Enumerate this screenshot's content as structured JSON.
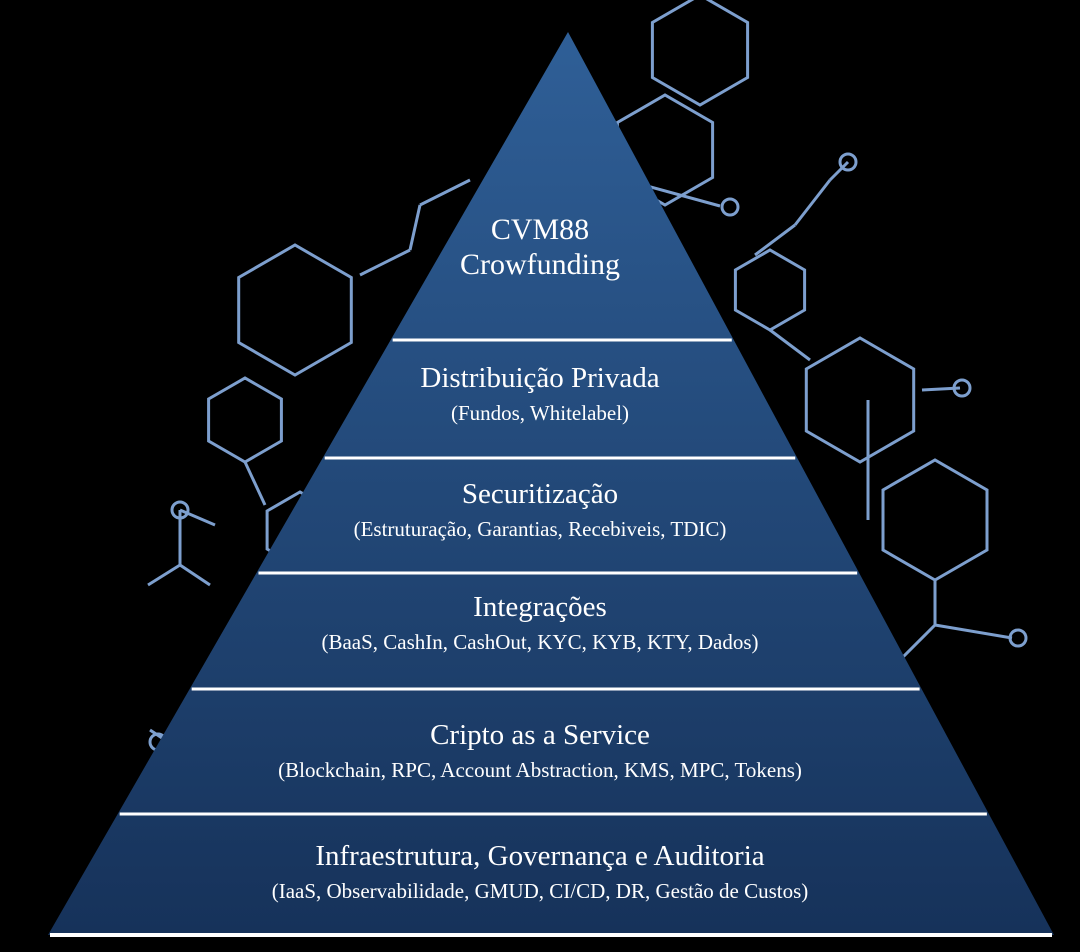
{
  "colors": {
    "background": "#000000",
    "pyramid_top": "#2f5f97",
    "pyramid_bottom": "#16325a",
    "divider": "#ffffff",
    "network_lines": "#7d9fce",
    "text": "#ffffff"
  },
  "pyramid": {
    "layers": [
      {
        "title_lines": [
          "CVM88",
          "Crowfunding"
        ],
        "subtitle": ""
      },
      {
        "title_lines": [
          "Distribuição Privada"
        ],
        "subtitle": "(Fundos, Whitelabel)"
      },
      {
        "title_lines": [
          "Securitização"
        ],
        "subtitle": "(Estruturação, Garantias, Recebiveis, TDIC)"
      },
      {
        "title_lines": [
          "Integrações"
        ],
        "subtitle": "(BaaS, CashIn, CashOut, KYC, KYB, KTY, Dados)"
      },
      {
        "title_lines": [
          "Cripto as a Service"
        ],
        "subtitle": "(Blockchain, RPC, Account Abstraction, KMS, MPC, Tokens)"
      },
      {
        "title_lines": [
          "Infraestrutura, Governança e Auditoria"
        ],
        "subtitle": "(IaaS, Observabilidade, GMUD, CI/CD, DR, Gestão de Custos)"
      }
    ]
  }
}
